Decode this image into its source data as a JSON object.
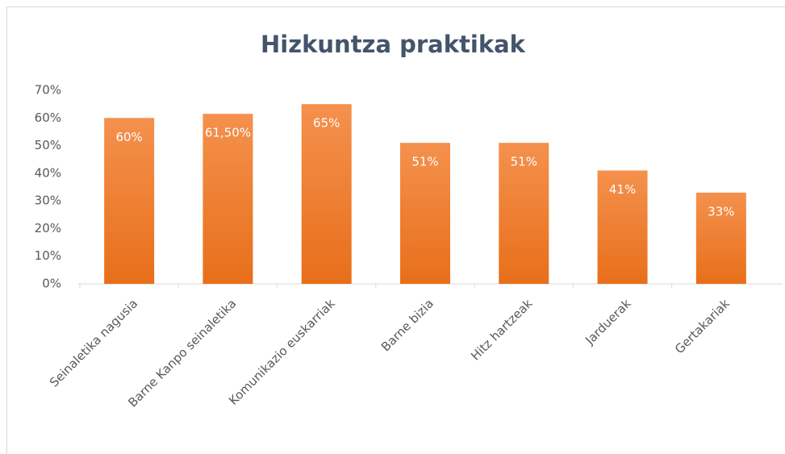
{
  "chart_data": {
    "type": "bar",
    "title": "Hizkuntza  praktikak",
    "categories": [
      "Seinaletika nagusia",
      "Barne Kanpo seinaletika",
      "Komunikazio euskarriak",
      "Barne bizia",
      "Hitz hartzeak",
      "Jarduerak",
      "Gertakariak"
    ],
    "values": [
      60,
      61.5,
      65,
      51,
      51,
      41,
      33
    ],
    "value_labels": [
      "60%",
      "61,50%",
      "65%",
      "51%",
      "51%",
      "41%",
      "33%"
    ],
    "color": "#ed7d31",
    "ylim": [
      0,
      70
    ],
    "yticks": [
      {
        "value": 0,
        "label": "0%"
      },
      {
        "value": 10,
        "label": "10%"
      },
      {
        "value": 20,
        "label": "20%"
      },
      {
        "value": 30,
        "label": "30%"
      },
      {
        "value": 40,
        "label": "40%"
      },
      {
        "value": 50,
        "label": "50%"
      },
      {
        "value": 60,
        "label": "60%"
      },
      {
        "value": 70,
        "label": "70%"
      }
    ],
    "grid": false
  }
}
